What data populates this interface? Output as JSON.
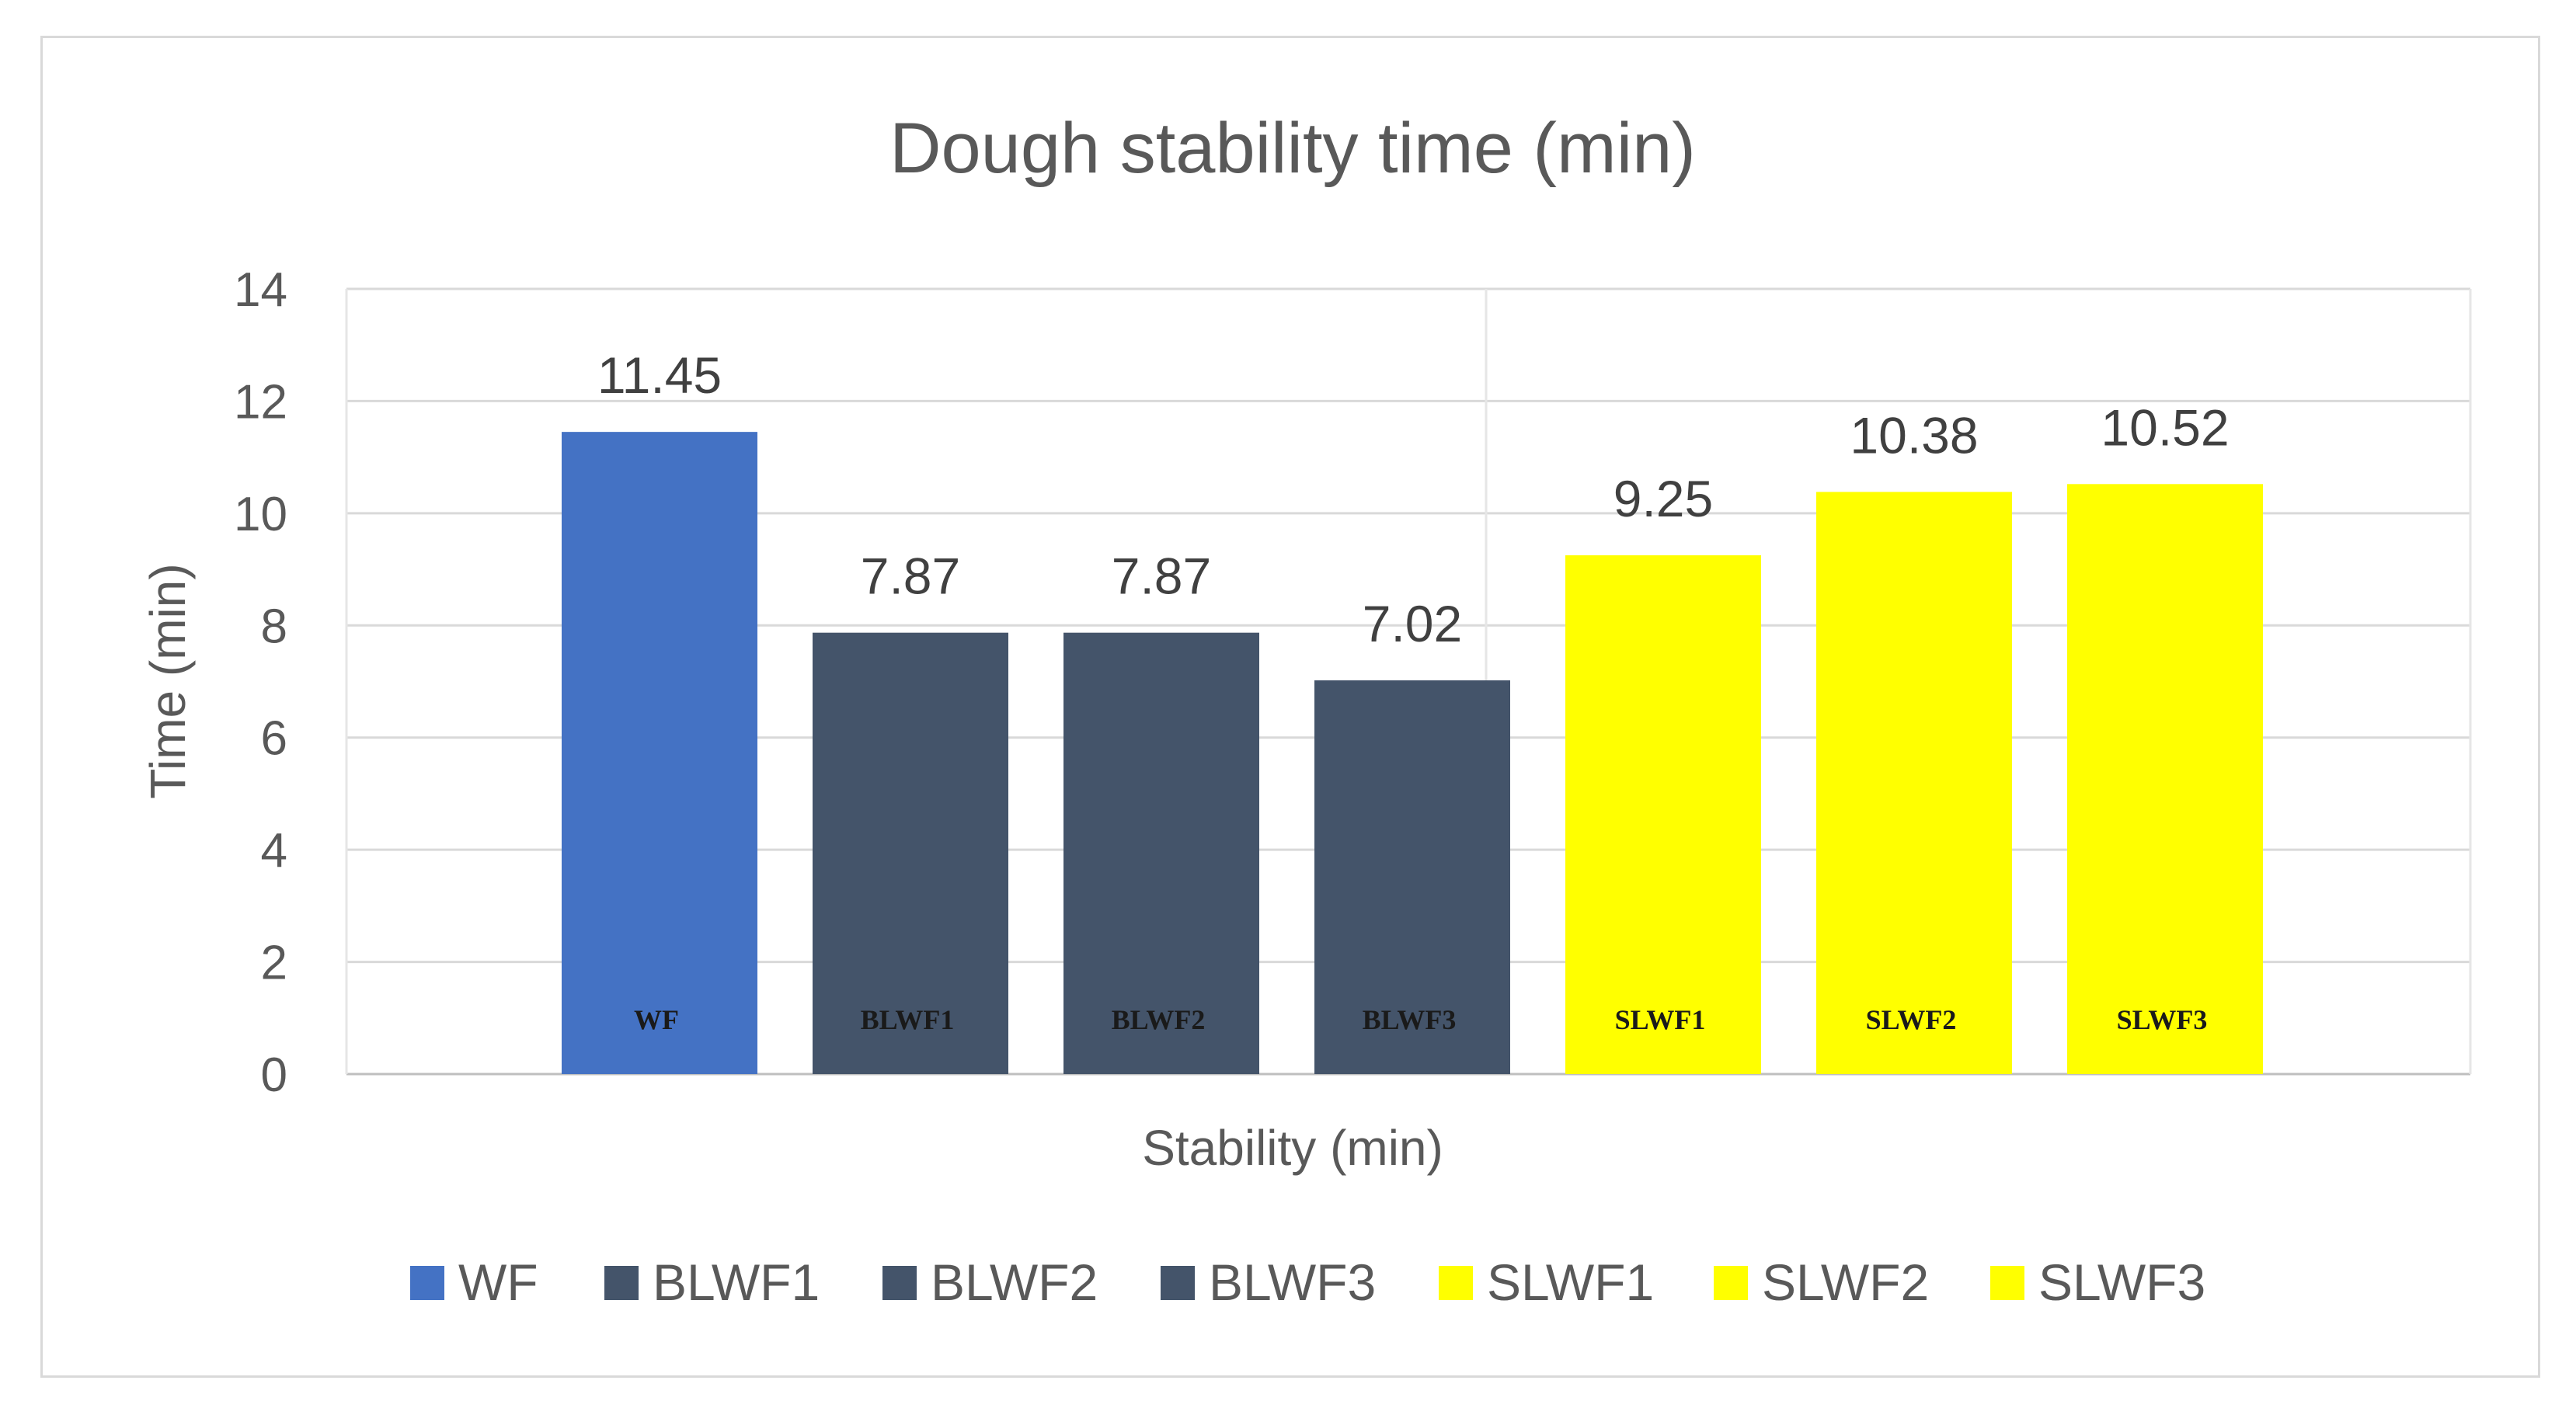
{
  "chart_data": {
    "type": "bar",
    "title": "Dough stability time (min)",
    "xlabel": "Stability (min)",
    "ylabel": "Time (min)",
    "ylim": [
      0,
      14
    ],
    "yticks": [
      0,
      2,
      4,
      6,
      8,
      10,
      12,
      14
    ],
    "grid": true,
    "legend_position": "bottom",
    "categories": [
      "WF",
      "BLWF1",
      "BLWF2",
      "BLWF3",
      "SLWF1",
      "SLWF2",
      "SLWF3"
    ],
    "values": [
      11.45,
      7.87,
      7.87,
      7.02,
      9.25,
      10.38,
      10.52
    ],
    "data_labels": [
      "11.45",
      "7.87",
      "7.87",
      "7.02",
      "9.25",
      "10.38",
      "10.52"
    ],
    "bar_labels": [
      "WF",
      "BLWF1",
      "BLWF2",
      "BLWF3",
      "SLWF1",
      "SLWF2",
      "SLWF3"
    ],
    "colors": [
      "#4472c4",
      "#44546a",
      "#44546a",
      "#44546a",
      "#ffff00",
      "#ffff00",
      "#ffff00"
    ],
    "legend": [
      {
        "label": "WF",
        "color": "#4472c4"
      },
      {
        "label": "BLWF1",
        "color": "#44546a"
      },
      {
        "label": "BLWF2",
        "color": "#44546a"
      },
      {
        "label": "BLWF3",
        "color": "#44546a"
      },
      {
        "label": "SLWF1",
        "color": "#ffff00"
      },
      {
        "label": "SLWF2",
        "color": "#ffff00"
      },
      {
        "label": "SLWF3",
        "color": "#ffff00"
      }
    ]
  }
}
